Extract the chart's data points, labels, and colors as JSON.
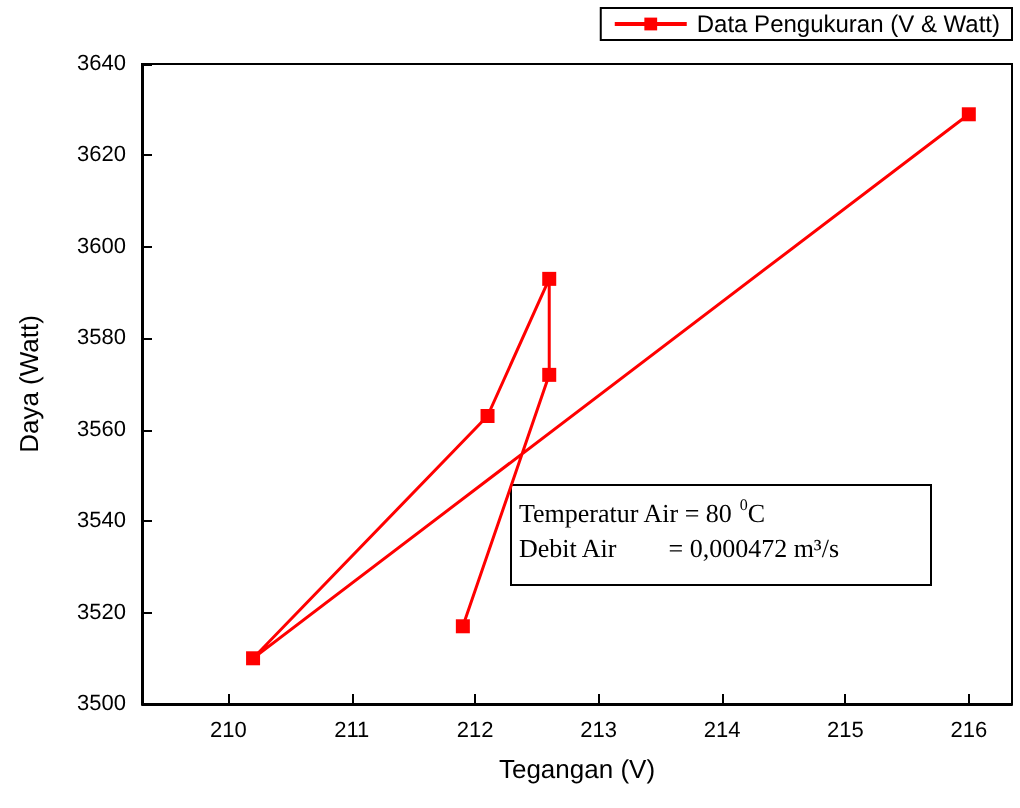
{
  "chart_data": {
    "type": "line",
    "xlabel": "Tegangan (V)",
    "ylabel": "Daya (Watt)",
    "series": [
      {
        "name": "Data Pengukuran (V & Watt)",
        "color": "#ff0000",
        "x": [
          211.9,
          212.6,
          212.6,
          212.1,
          210.2,
          216
        ],
        "values": [
          3517,
          3572,
          3593,
          3563,
          3510,
          3629
        ]
      }
    ],
    "xlim": [
      209.3,
      216.35
    ],
    "xticks": [
      210,
      211,
      212,
      213,
      214,
      215,
      216
    ],
    "ylim": [
      3500,
      3640
    ],
    "yticks": [
      3500,
      3520,
      3540,
      3560,
      3580,
      3600,
      3620,
      3640
    ],
    "marker": "square",
    "line_style": "solid",
    "grid": false,
    "legend": "top right",
    "annotations": [
      "Temperatur Air = 80 $^{0}$C",
      "Debit Air        = 0,000472 m³/s"
    ]
  }
}
